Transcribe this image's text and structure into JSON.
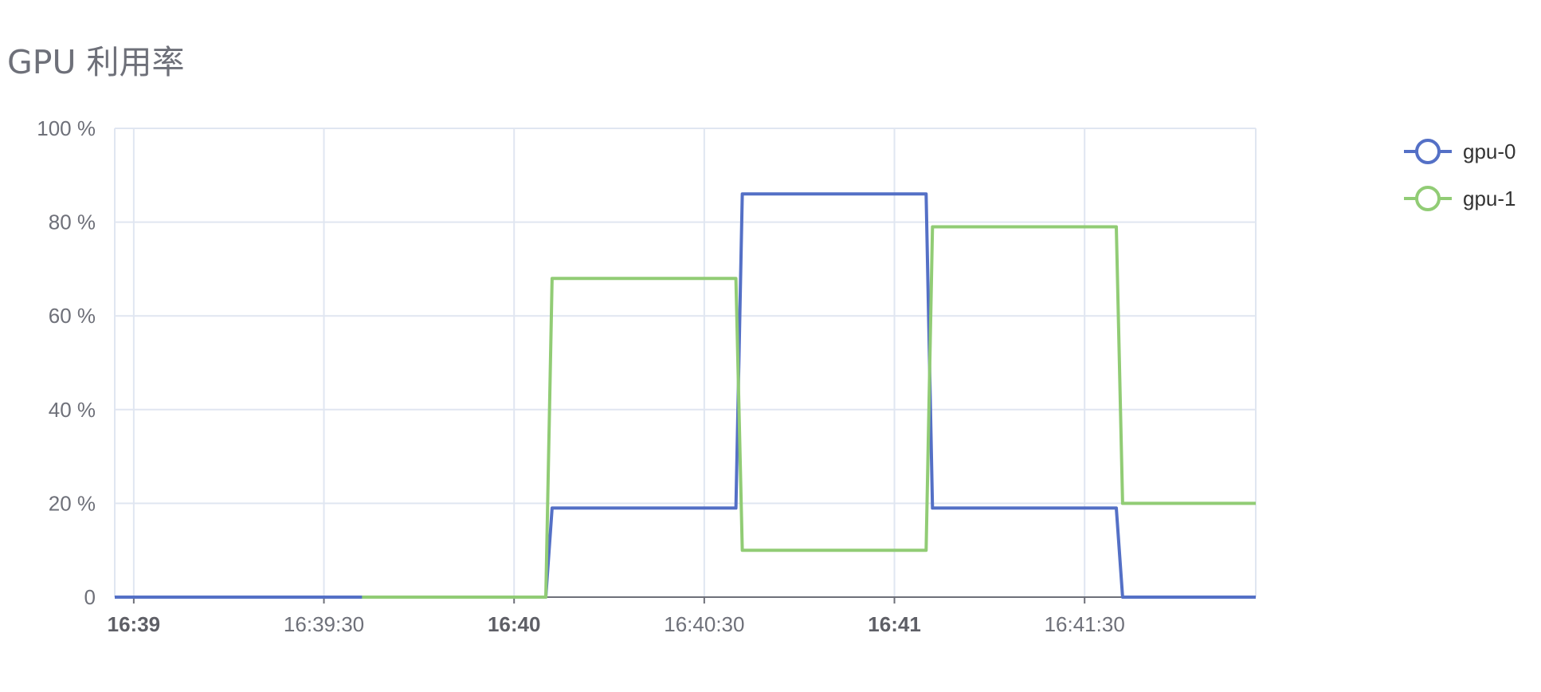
{
  "chart_data": {
    "type": "line",
    "title": "GPU 利用率",
    "xlabel": "",
    "ylabel": "",
    "x_axis": {
      "type": "time",
      "range": [
        "16:38:57",
        "16:41:57"
      ],
      "ticks": [
        {
          "time": "16:39:00",
          "label": "16:39",
          "major": true
        },
        {
          "time": "16:39:30",
          "label": "16:39:30",
          "major": false
        },
        {
          "time": "16:40:00",
          "label": "16:40",
          "major": true
        },
        {
          "time": "16:40:30",
          "label": "16:40:30",
          "major": false
        },
        {
          "time": "16:41:00",
          "label": "16:41",
          "major": true
        },
        {
          "time": "16:41:30",
          "label": "16:41:30",
          "major": false
        }
      ]
    },
    "y_axis": {
      "range": [
        0,
        100
      ],
      "ticks": [
        {
          "value": 0,
          "label": "0"
        },
        {
          "value": 20,
          "label": "20 %"
        },
        {
          "value": 40,
          "label": "40 %"
        },
        {
          "value": 60,
          "label": "60 %"
        },
        {
          "value": 80,
          "label": "80 %"
        },
        {
          "value": 100,
          "label": "100 %"
        }
      ]
    },
    "grid": true,
    "legend_position": "top-right",
    "series": [
      {
        "name": "gpu-0",
        "color": "#5470c6",
        "points": [
          [
            "16:38:57",
            0
          ],
          [
            "16:40:05",
            0
          ],
          [
            "16:40:06",
            19
          ],
          [
            "16:40:35",
            19
          ],
          [
            "16:40:36",
            86
          ],
          [
            "16:41:05",
            86
          ],
          [
            "16:41:06",
            19
          ],
          [
            "16:41:35",
            19
          ],
          [
            "16:41:36",
            0
          ],
          [
            "16:41:57",
            0
          ]
        ]
      },
      {
        "name": "gpu-1",
        "color": "#91cc75",
        "points": [
          [
            "16:39:36",
            0
          ],
          [
            "16:40:05",
            0
          ],
          [
            "16:40:06",
            68
          ],
          [
            "16:40:35",
            68
          ],
          [
            "16:40:36",
            10
          ],
          [
            "16:41:05",
            10
          ],
          [
            "16:41:06",
            79
          ],
          [
            "16:41:35",
            79
          ],
          [
            "16:41:36",
            20
          ],
          [
            "16:41:57",
            20
          ]
        ]
      }
    ]
  }
}
